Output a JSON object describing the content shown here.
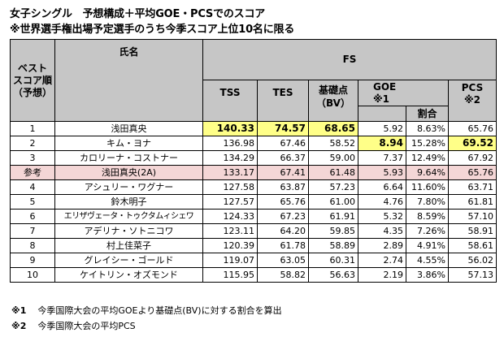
{
  "title": {
    "line1": "女子シングル　予想構成＋平均GOE・PCSでのスコア",
    "line2": "※世界選手権出場予定選手のうち今季スコア上位10名に限る"
  },
  "header": {
    "rank": "ベスト\nスコア順\n（予想）",
    "name": "氏名",
    "fs": "FS",
    "tss": "TSS",
    "tes": "TES",
    "bv": "基礎点\n（BV）",
    "goe": "GOE\n※1",
    "ratio": "割合",
    "pcs": "PCS\n※2"
  },
  "rows": [
    {
      "rank": "1",
      "name": "浅田真央",
      "tss": "140.33",
      "tes": "74.57",
      "bv": "68.65",
      "goe": "5.92",
      "ratio": "8.63%",
      "pcs": "65.76"
    },
    {
      "rank": "2",
      "name": "キム・ヨナ",
      "tss": "136.98",
      "tes": "67.46",
      "bv": "58.52",
      "goe": "8.94",
      "ratio": "15.28%",
      "pcs": "69.52"
    },
    {
      "rank": "3",
      "name": "カロリーナ・コストナー",
      "tss": "134.29",
      "tes": "66.37",
      "bv": "59.00",
      "goe": "7.37",
      "ratio": "12.49%",
      "pcs": "67.92"
    },
    {
      "rank": "参考",
      "name": "浅田真央(2A)",
      "tss": "133.17",
      "tes": "67.41",
      "bv": "61.48",
      "goe": "5.93",
      "ratio": "9.64%",
      "pcs": "65.76"
    },
    {
      "rank": "4",
      "name": "アシュリー・ワグナー",
      "tss": "127.58",
      "tes": "63.87",
      "bv": "57.23",
      "goe": "6.64",
      "ratio": "11.60%",
      "pcs": "63.71"
    },
    {
      "rank": "5",
      "name": "鈴木明子",
      "tss": "127.57",
      "tes": "65.76",
      "bv": "61.00",
      "goe": "4.76",
      "ratio": "7.80%",
      "pcs": "61.81"
    },
    {
      "rank": "6",
      "name": "エリザヴェータ・トゥクタムィシェワ",
      "tss": "124.33",
      "tes": "67.23",
      "bv": "61.91",
      "goe": "5.32",
      "ratio": "8.59%",
      "pcs": "57.10"
    },
    {
      "rank": "7",
      "name": "アデリナ・ソトニコワ",
      "tss": "123.11",
      "tes": "64.20",
      "bv": "59.85",
      "goe": "4.35",
      "ratio": "7.26%",
      "pcs": "58.91"
    },
    {
      "rank": "8",
      "name": "村上佳菜子",
      "tss": "120.39",
      "tes": "61.78",
      "bv": "58.89",
      "goe": "2.89",
      "ratio": "4.91%",
      "pcs": "58.61"
    },
    {
      "rank": "9",
      "name": "グレイシー・ゴールド",
      "tss": "119.07",
      "tes": "63.05",
      "bv": "60.31",
      "goe": "2.74",
      "ratio": "4.55%",
      "pcs": "56.02"
    },
    {
      "rank": "10",
      "name": "ケイトリン・オズモンド",
      "tss": "115.95",
      "tes": "58.82",
      "bv": "56.63",
      "goe": "2.19",
      "ratio": "3.86%",
      "pcs": "57.13"
    }
  ],
  "notes": [
    {
      "mark": "※1",
      "text": "今季国際大会の平均GOEより基礎点(BV)に対する割合を算出"
    },
    {
      "mark": "※2",
      "text": "今季国際大会の平均PCS"
    }
  ],
  "colors": {
    "header_bg": "#c6c6c6",
    "highlight": "#ffff88",
    "reference_row": "#f4d6d6"
  }
}
